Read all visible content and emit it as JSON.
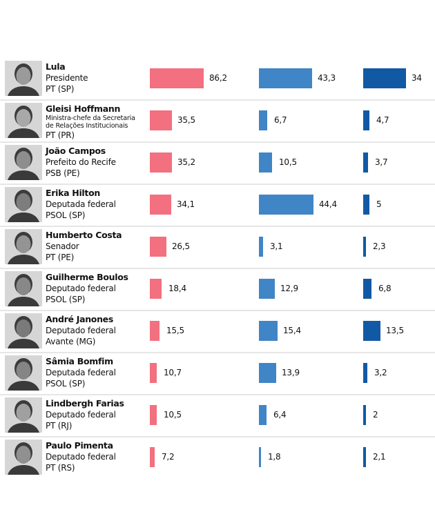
{
  "chart_data": {
    "type": "bar",
    "orientation": "horizontal",
    "title": "",
    "xlabel": "",
    "ylabel": "",
    "grid": false,
    "colors": [
      "#f2707f",
      "#4085c6",
      "#1159a4"
    ],
    "categories": [
      {
        "name": "Lula",
        "role": "Presidente",
        "party": "PT (SP)"
      },
      {
        "name": "Gleisi Hoffmann",
        "role": "Ministra-chefe da Secretaria de Relações Institucionais",
        "role_lines": [
          "Ministra-chefe da Secretaria",
          "de Relações Institucionais"
        ],
        "party": "PT (PR)"
      },
      {
        "name": "João Campos",
        "role": "Prefeito do Recife",
        "party": "PSB (PE)"
      },
      {
        "name": "Erika Hilton",
        "role": "Deputada federal",
        "party": "PSOL (SP)"
      },
      {
        "name": "Humberto Costa",
        "role": "Senador",
        "party": "PT (PE)"
      },
      {
        "name": "Guilherme Boulos",
        "role": "Deputado federal",
        "party": "PSOL (SP)"
      },
      {
        "name": "André Janones",
        "role": "Deputado federal",
        "party": "Avante (MG)"
      },
      {
        "name": "Sâmia Bomfim",
        "role": "Deputada federal",
        "party": "PSOL (SP)"
      },
      {
        "name": "Lindbergh Farias",
        "role": "Deputado federal",
        "party": "PT (RJ)"
      },
      {
        "name": "Paulo Pimenta",
        "role": "Deputado federal",
        "party": "PT (RS)"
      }
    ],
    "series": [
      {
        "name": "",
        "values": [
          86.2,
          35.5,
          35.2,
          34.1,
          26.5,
          18.4,
          15.5,
          10.7,
          10.5,
          7.2
        ],
        "labels": [
          "86,2",
          "35,5",
          "35,2",
          "34,1",
          "26,5",
          "18,4",
          "15,5",
          "10,7",
          "10,5",
          "7,2"
        ]
      },
      {
        "name": "",
        "values": [
          43.3,
          6.7,
          10.5,
          44.4,
          3.1,
          12.9,
          15.4,
          13.9,
          6.4,
          1.8
        ],
        "labels": [
          "43,3",
          "6,7",
          "10,5",
          "44,4",
          "3,1",
          "12,9",
          "15,4",
          "13,9",
          "6,4",
          "1,8"
        ]
      },
      {
        "name": "",
        "values": [
          34,
          4.7,
          3.7,
          5,
          2.3,
          6.8,
          13.5,
          3.2,
          2,
          2.1
        ],
        "labels": [
          "34",
          "4,7",
          "3,7",
          "5",
          "2,3",
          "6,8",
          "13,5",
          "3,2",
          "2",
          "2,1"
        ]
      }
    ]
  }
}
